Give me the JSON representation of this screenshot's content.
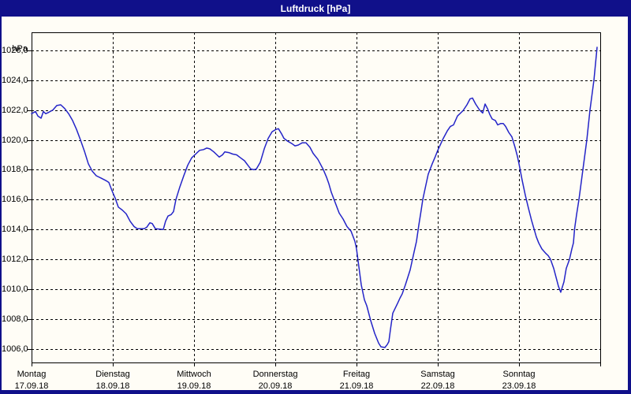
{
  "window": {
    "title": "Luftdruck [hPa]"
  },
  "colors": {
    "titlebar_bg": "#10108a",
    "title_text": "#ffffff",
    "content_bg": "#fffdf6",
    "grid": "#000000",
    "axis_frame": "#000000",
    "tick_text": "#000000",
    "line": "#2424c8"
  },
  "chart_data": {
    "type": "line",
    "title": "Luftdruck [hPa]",
    "unit_label": "hPa",
    "grid": "dashed",
    "legend": "none",
    "ylim": [
      1005.1,
      1027.2
    ],
    "x_range_days": [
      0,
      7
    ],
    "y_ticks": [
      {
        "value": 1026,
        "label": "1026,0"
      },
      {
        "value": 1024,
        "label": "1024,0"
      },
      {
        "value": 1022,
        "label": "1022,0"
      },
      {
        "value": 1020,
        "label": "1020,0"
      },
      {
        "value": 1018,
        "label": "1018,0"
      },
      {
        "value": 1016,
        "label": "1016,0"
      },
      {
        "value": 1014,
        "label": "1014,0"
      },
      {
        "value": 1012,
        "label": "1012,0"
      },
      {
        "value": 1010,
        "label": "1010,0"
      },
      {
        "value": 1008,
        "label": "1008,0"
      },
      {
        "value": 1006,
        "label": "1006,0"
      }
    ],
    "x_ticks": [
      {
        "day": "Montag",
        "date": "17.09.18"
      },
      {
        "day": "Dienstag",
        "date": "18.09.18"
      },
      {
        "day": "Mittwoch",
        "date": "19.09.18"
      },
      {
        "day": "Donnerstag",
        "date": "20.09.18"
      },
      {
        "day": "Freitag",
        "date": "21.09.18"
      },
      {
        "day": "Samstag",
        "date": "22.09.18"
      },
      {
        "day": "Sonntag",
        "date": "23.09.18"
      }
    ],
    "series": [
      {
        "name": "Luftdruck",
        "color": "#2424c8",
        "points": [
          [
            0.0,
            1021.75
          ],
          [
            0.049,
            1021.9
          ],
          [
            0.078,
            1021.6
          ],
          [
            0.117,
            1021.45
          ],
          [
            0.146,
            1021.9
          ],
          [
            0.175,
            1021.75
          ],
          [
            0.214,
            1021.85
          ],
          [
            0.262,
            1022.0
          ],
          [
            0.311,
            1022.3
          ],
          [
            0.359,
            1022.35
          ],
          [
            0.408,
            1022.1
          ],
          [
            0.456,
            1021.75
          ],
          [
            0.505,
            1021.3
          ],
          [
            0.553,
            1020.7
          ],
          [
            0.602,
            1020.0
          ],
          [
            0.65,
            1019.25
          ],
          [
            0.699,
            1018.4
          ],
          [
            0.748,
            1017.9
          ],
          [
            0.796,
            1017.6
          ],
          [
            0.854,
            1017.45
          ],
          [
            0.922,
            1017.25
          ],
          [
            0.951,
            1017.15
          ],
          [
            0.99,
            1016.6
          ],
          [
            1.029,
            1016.1
          ],
          [
            1.068,
            1015.5
          ],
          [
            1.117,
            1015.3
          ],
          [
            1.165,
            1015.05
          ],
          [
            1.214,
            1014.55
          ],
          [
            1.262,
            1014.2
          ],
          [
            1.301,
            1014.05
          ],
          [
            1.388,
            1014.05
          ],
          [
            1.417,
            1014.15
          ],
          [
            1.456,
            1014.45
          ],
          [
            1.485,
            1014.4
          ],
          [
            1.524,
            1014.05
          ],
          [
            1.621,
            1014.0
          ],
          [
            1.65,
            1014.55
          ],
          [
            1.68,
            1014.9
          ],
          [
            1.718,
            1015.0
          ],
          [
            1.748,
            1015.2
          ],
          [
            1.777,
            1016.0
          ],
          [
            1.825,
            1016.85
          ],
          [
            1.874,
            1017.6
          ],
          [
            1.922,
            1018.3
          ],
          [
            1.971,
            1018.8
          ],
          [
            2.01,
            1019.0
          ],
          [
            2.068,
            1019.3
          ],
          [
            2.117,
            1019.35
          ],
          [
            2.155,
            1019.45
          ],
          [
            2.194,
            1019.4
          ],
          [
            2.243,
            1019.2
          ],
          [
            2.282,
            1019.0
          ],
          [
            2.311,
            1018.85
          ],
          [
            2.35,
            1019.0
          ],
          [
            2.379,
            1019.2
          ],
          [
            2.427,
            1019.15
          ],
          [
            2.476,
            1019.05
          ],
          [
            2.524,
            1019.0
          ],
          [
            2.573,
            1018.8
          ],
          [
            2.621,
            1018.6
          ],
          [
            2.67,
            1018.25
          ],
          [
            2.699,
            1018.05
          ],
          [
            2.738,
            1018.0
          ],
          [
            2.767,
            1018.05
          ],
          [
            2.816,
            1018.5
          ],
          [
            2.864,
            1019.4
          ],
          [
            2.913,
            1020.1
          ],
          [
            2.961,
            1020.55
          ],
          [
            3.01,
            1020.7
          ],
          [
            3.039,
            1020.75
          ],
          [
            3.078,
            1020.4
          ],
          [
            3.107,
            1020.1
          ],
          [
            3.155,
            1019.9
          ],
          [
            3.204,
            1019.75
          ],
          [
            3.243,
            1019.6
          ],
          [
            3.282,
            1019.65
          ],
          [
            3.33,
            1019.8
          ],
          [
            3.379,
            1019.8
          ],
          [
            3.427,
            1019.5
          ],
          [
            3.466,
            1019.1
          ],
          [
            3.524,
            1018.7
          ],
          [
            3.563,
            1018.3
          ],
          [
            3.592,
            1018.0
          ],
          [
            3.631,
            1017.5
          ],
          [
            3.66,
            1017.05
          ],
          [
            3.689,
            1016.5
          ],
          [
            3.738,
            1015.8
          ],
          [
            3.786,
            1015.1
          ],
          [
            3.835,
            1014.7
          ],
          [
            3.883,
            1014.2
          ],
          [
            3.932,
            1013.9
          ],
          [
            3.981,
            1013.2
          ],
          [
            4.0,
            1012.7
          ],
          [
            4.029,
            1011.5
          ],
          [
            4.058,
            1010.3
          ],
          [
            4.097,
            1009.3
          ],
          [
            4.126,
            1008.9
          ],
          [
            4.175,
            1007.9
          ],
          [
            4.223,
            1007.05
          ],
          [
            4.272,
            1006.4
          ],
          [
            4.301,
            1006.15
          ],
          [
            4.35,
            1006.1
          ],
          [
            4.379,
            1006.3
          ],
          [
            4.398,
            1006.5
          ],
          [
            4.417,
            1007.3
          ],
          [
            4.447,
            1008.4
          ],
          [
            4.505,
            1009.05
          ],
          [
            4.534,
            1009.4
          ],
          [
            4.563,
            1009.7
          ],
          [
            4.602,
            1010.3
          ],
          [
            4.66,
            1011.3
          ],
          [
            4.709,
            1012.5
          ],
          [
            4.738,
            1013.2
          ],
          [
            4.767,
            1014.3
          ],
          [
            4.796,
            1015.3
          ],
          [
            4.816,
            1016.0
          ],
          [
            4.835,
            1016.5
          ],
          [
            4.883,
            1017.7
          ],
          [
            4.932,
            1018.4
          ],
          [
            4.971,
            1018.9
          ],
          [
            5.0,
            1019.3
          ],
          [
            5.068,
            1020.1
          ],
          [
            5.117,
            1020.6
          ],
          [
            5.155,
            1020.9
          ],
          [
            5.194,
            1021.0
          ],
          [
            5.243,
            1021.6
          ],
          [
            5.311,
            1021.95
          ],
          [
            5.359,
            1022.35
          ],
          [
            5.398,
            1022.75
          ],
          [
            5.427,
            1022.8
          ],
          [
            5.466,
            1022.4
          ],
          [
            5.515,
            1022.0
          ],
          [
            5.553,
            1021.8
          ],
          [
            5.583,
            1022.4
          ],
          [
            5.612,
            1022.1
          ],
          [
            5.641,
            1021.7
          ],
          [
            5.67,
            1021.4
          ],
          [
            5.709,
            1021.3
          ],
          [
            5.738,
            1021.0
          ],
          [
            5.777,
            1021.1
          ],
          [
            5.806,
            1021.1
          ],
          [
            5.835,
            1020.9
          ],
          [
            5.874,
            1020.5
          ],
          [
            5.913,
            1020.2
          ],
          [
            5.951,
            1019.5
          ],
          [
            5.981,
            1018.9
          ],
          [
            6.0,
            1018.4
          ],
          [
            6.039,
            1017.3
          ],
          [
            6.078,
            1016.3
          ],
          [
            6.117,
            1015.4
          ],
          [
            6.155,
            1014.6
          ],
          [
            6.184,
            1014.05
          ],
          [
            6.214,
            1013.5
          ],
          [
            6.243,
            1013.1
          ],
          [
            6.282,
            1012.7
          ],
          [
            6.33,
            1012.4
          ],
          [
            6.359,
            1012.25
          ],
          [
            6.388,
            1012.0
          ],
          [
            6.427,
            1011.4
          ],
          [
            6.456,
            1010.8
          ],
          [
            6.485,
            1010.2
          ],
          [
            6.514,
            1009.8
          ],
          [
            6.553,
            1010.5
          ],
          [
            6.582,
            1011.4
          ],
          [
            6.621,
            1012.0
          ],
          [
            6.65,
            1012.7
          ],
          [
            6.67,
            1013.1
          ],
          [
            6.684,
            1014.05
          ],
          [
            6.709,
            1015.0
          ],
          [
            6.738,
            1016.0
          ],
          [
            6.786,
            1018.0
          ],
          [
            6.835,
            1020.0
          ],
          [
            6.874,
            1022.0
          ],
          [
            6.922,
            1024.0
          ],
          [
            6.961,
            1026.2
          ]
        ]
      }
    ]
  }
}
